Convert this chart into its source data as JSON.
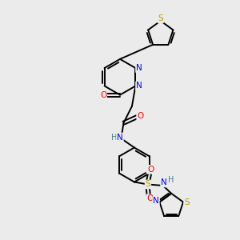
{
  "background_color": "#ebebeb",
  "bond_color": "#000000",
  "atom_colors": {
    "S": "#b8a000",
    "N": "#0000ff",
    "O": "#ff0000",
    "H": "#4a8080",
    "C": "#000000"
  },
  "figsize": [
    3.0,
    3.0
  ],
  "dpi": 100
}
